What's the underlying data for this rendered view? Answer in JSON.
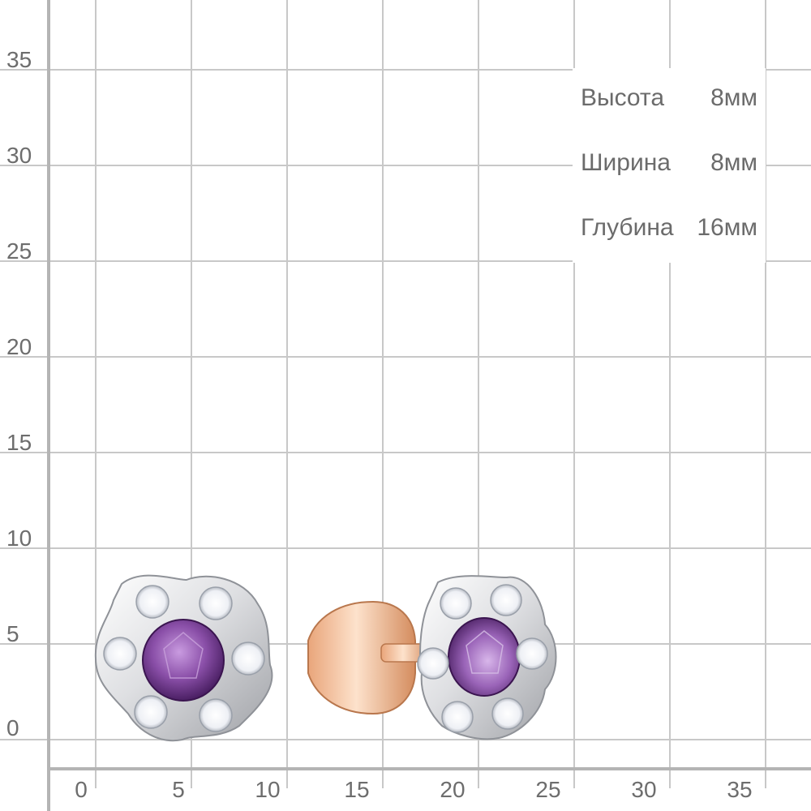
{
  "scale": {
    "y_ticks": [
      "35",
      "30",
      "25",
      "20",
      "15",
      "10",
      "5",
      "0"
    ],
    "x_ticks": [
      "0",
      "5",
      "10",
      "15",
      "20",
      "25",
      "30",
      "35"
    ]
  },
  "dimensions": [
    {
      "label": "Высота",
      "value": "8мм"
    },
    {
      "label": "Ширина",
      "value": "8мм"
    },
    {
      "label": "Глубина",
      "value": "16мм"
    }
  ],
  "colors": {
    "grid": "#c8c8c8",
    "axis": "#b4b4b4",
    "label": "#6d6d6d",
    "metal_white": "#e9e9ea",
    "metal_rose": "#f1b98f",
    "amethyst": "#8a4fa8",
    "diamond": "#f7f8fb"
  }
}
